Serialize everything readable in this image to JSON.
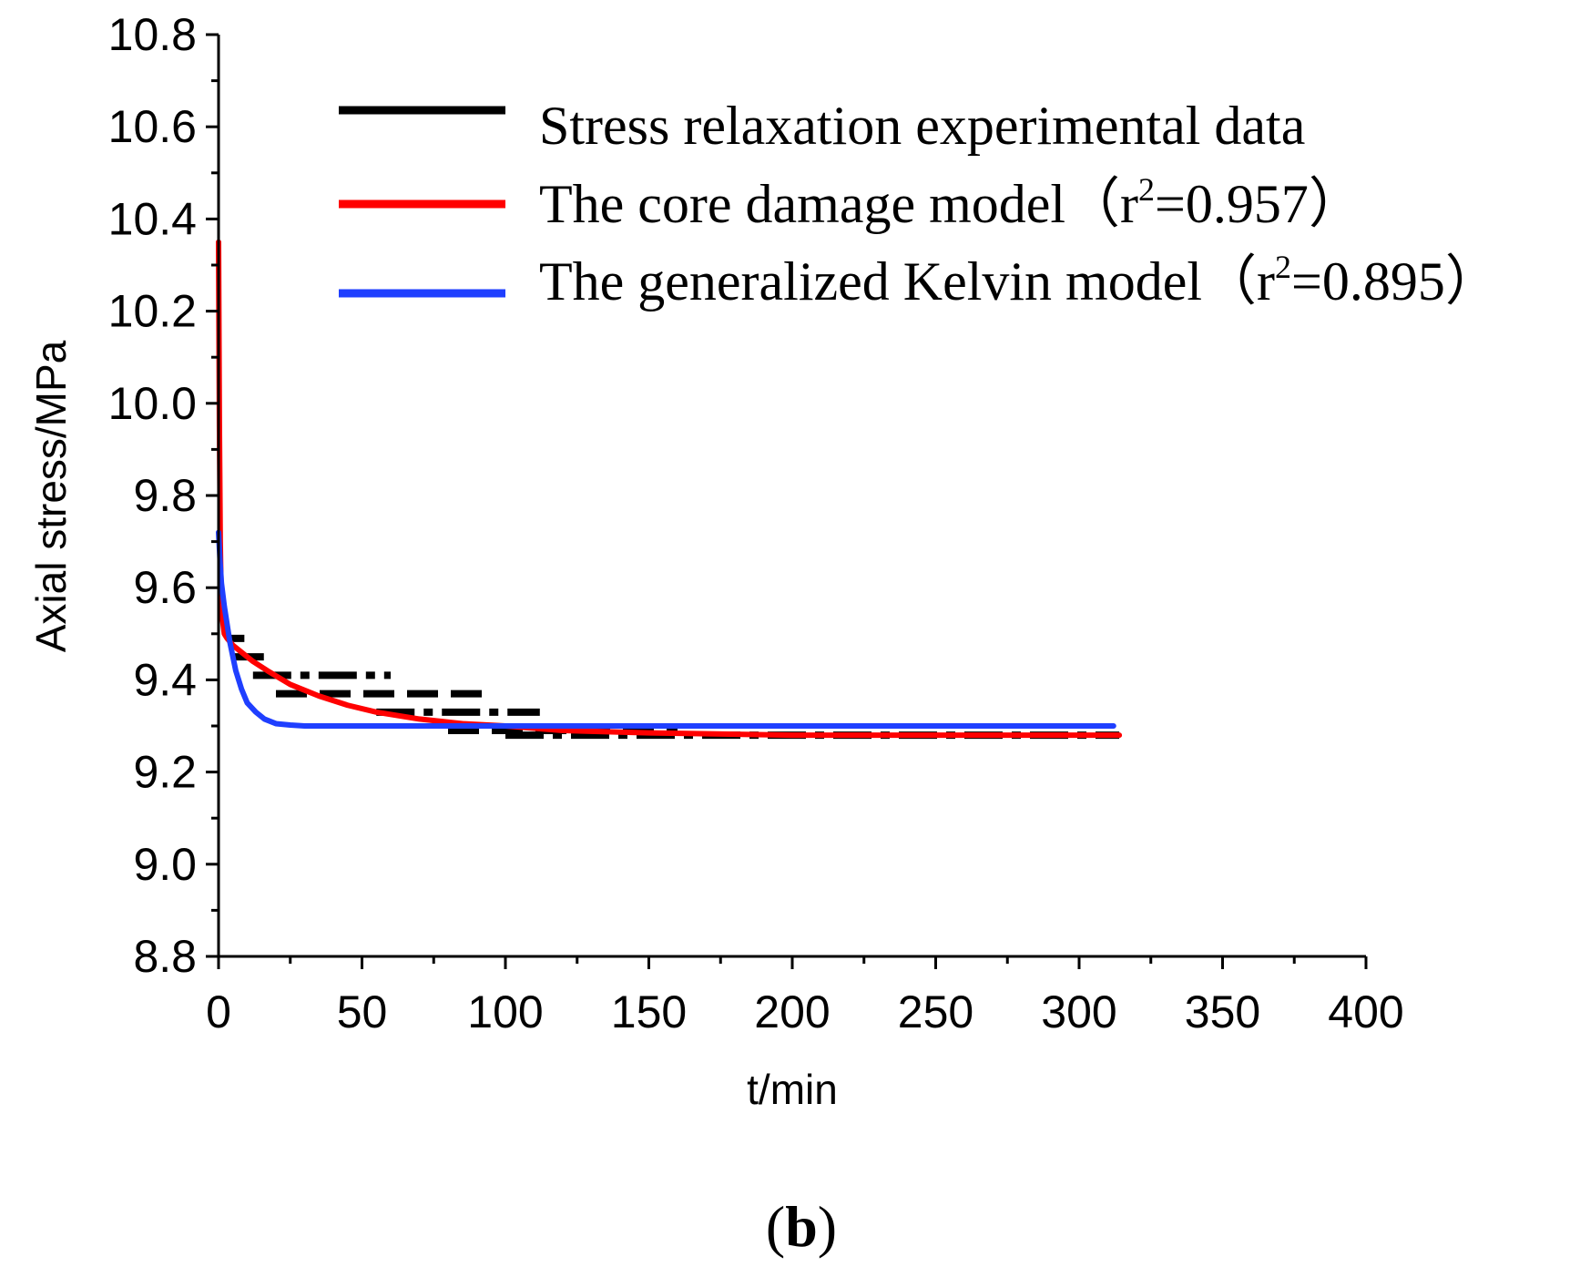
{
  "chart_data": {
    "type": "line",
    "xlabel": "t/min",
    "ylabel": "Axial stress/MPa",
    "xlim": [
      0,
      400
    ],
    "ylim": [
      8.8,
      10.8
    ],
    "xticks": [
      "0",
      "50",
      "100",
      "150",
      "200",
      "250",
      "300",
      "350",
      "400"
    ],
    "yticks": [
      "8.8",
      "9.0",
      "9.2",
      "9.4",
      "9.6",
      "9.8",
      "10.0",
      "10.2",
      "10.4",
      "10.6",
      "10.8"
    ],
    "grid": false,
    "legend_position": "top-right",
    "panel_label": {
      "open": "(",
      "letter": "b",
      "close": ")"
    },
    "series": [
      {
        "name": "Stress relaxation experimental data",
        "color": "#000000",
        "style": "dashed-steps",
        "segments": [
          {
            "x": [
              3,
              9
            ],
            "y": 9.49
          },
          {
            "x": [
              5,
              20
            ],
            "y": 9.45
          },
          {
            "x": [
              12,
              60
            ],
            "y": 9.41
          },
          {
            "x": [
              20,
              95
            ],
            "y": 9.37
          },
          {
            "x": [
              55,
              112
            ],
            "y": 9.33
          },
          {
            "x": [
              80,
              160
            ],
            "y": 9.29
          },
          {
            "x": [
              100,
              314
            ],
            "y": 9.28
          }
        ]
      },
      {
        "name": "The core damage model（r²=0.957）",
        "legend_label": "The core damage model（r",
        "legend_r2": "=0.957）",
        "color": "#ff0000",
        "x": [
          0,
          0.3,
          0.6,
          1,
          2,
          3,
          5,
          8,
          12,
          17,
          25,
          35,
          45,
          55,
          70,
          85,
          100,
          120,
          150,
          200,
          250,
          314
        ],
        "y": [
          10.35,
          9.95,
          9.7,
          9.55,
          9.5,
          9.49,
          9.475,
          9.46,
          9.44,
          9.42,
          9.39,
          9.365,
          9.345,
          9.33,
          9.315,
          9.305,
          9.3,
          9.29,
          9.285,
          9.28,
          9.28,
          9.28
        ]
      },
      {
        "name": "The generalized Kelvin model（r²=0.895）",
        "legend_label": "The generalized Kelvin model（r",
        "legend_r2": "=0.895）",
        "color": "#1f3fff",
        "x": [
          0,
          0.5,
          1,
          2,
          3,
          4,
          5,
          6,
          8,
          10,
          13,
          16,
          20,
          25,
          30,
          40,
          60,
          100,
          200,
          312
        ],
        "y": [
          9.72,
          9.66,
          9.61,
          9.56,
          9.52,
          9.48,
          9.45,
          9.42,
          9.38,
          9.35,
          9.33,
          9.315,
          9.305,
          9.302,
          9.3,
          9.3,
          9.3,
          9.3,
          9.3,
          9.3
        ]
      }
    ]
  }
}
